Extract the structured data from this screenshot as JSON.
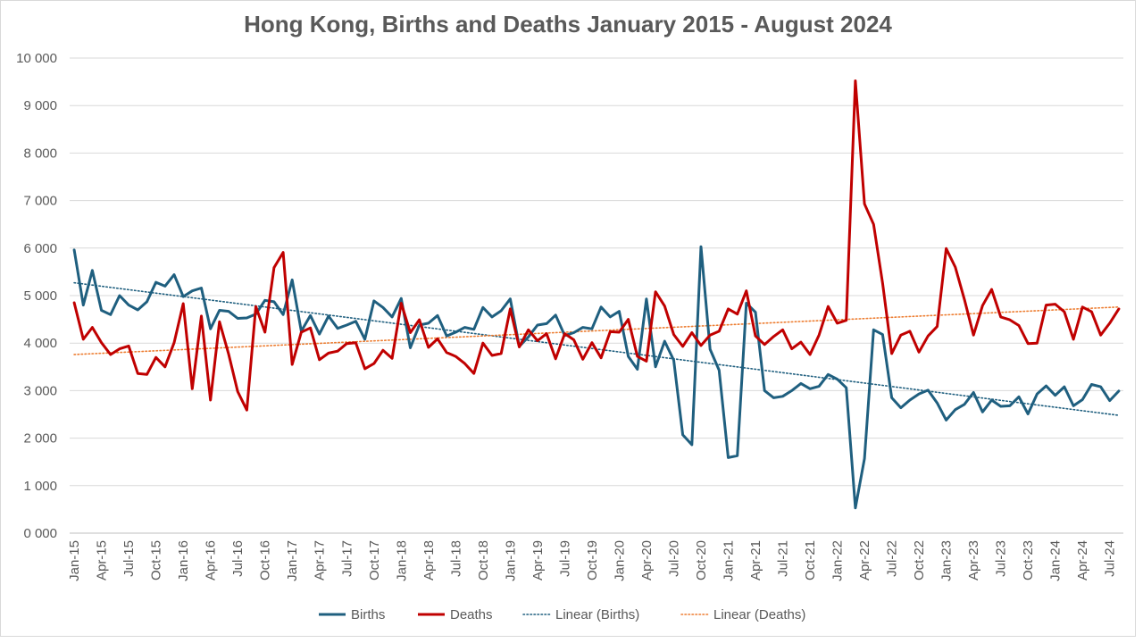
{
  "chart_data": {
    "type": "line",
    "title": "Hong Kong, Births and Deaths January 2015 - August 2024",
    "xlabel": "",
    "ylabel": "",
    "ylim": [
      0,
      10000
    ],
    "y_ticks": [
      "0 000",
      "1 000",
      "2 000",
      "3 000",
      "4 000",
      "5 000",
      "6 000",
      "7 000",
      "8 000",
      "9 000",
      "10 000"
    ],
    "grid": true,
    "legend_position": "bottom",
    "x_tick_labels": [
      "Jan-15",
      "Apr-15",
      "Jul-15",
      "Oct-15",
      "Jan-16",
      "Apr-16",
      "Jul-16",
      "Oct-16",
      "Jan-17",
      "Apr-17",
      "Jul-17",
      "Oct-17",
      "Jan-18",
      "Apr-18",
      "Jul-18",
      "Oct-18",
      "Jan-19",
      "Apr-19",
      "Jul-19",
      "Oct-19",
      "Jan-20",
      "Apr-20",
      "Jul-20",
      "Oct-20",
      "Jan-21",
      "Apr-21",
      "Jul-21",
      "Oct-21",
      "Jan-22",
      "Apr-22",
      "Jul-22",
      "Oct-22",
      "Jan-23",
      "Apr-23",
      "Jul-23",
      "Oct-23",
      "Jan-24",
      "Apr-24",
      "Jul-24"
    ],
    "series": [
      {
        "name": "Births",
        "color": "#1f5f7f",
        "values": [
          5960,
          4800,
          5530,
          4690,
          4600,
          5000,
          4800,
          4700,
          4870,
          5280,
          5200,
          5440,
          4980,
          5100,
          5160,
          4300,
          4690,
          4670,
          4520,
          4530,
          4610,
          4900,
          4870,
          4600,
          5330,
          4250,
          4580,
          4190,
          4570,
          4310,
          4380,
          4460,
          4080,
          4890,
          4750,
          4550,
          4940,
          3900,
          4380,
          4420,
          4580,
          4150,
          4230,
          4330,
          4290,
          4750,
          4550,
          4680,
          4930,
          3930,
          4130,
          4380,
          4410,
          4590,
          4160,
          4220,
          4330,
          4300,
          4760,
          4550,
          4670,
          3720,
          3450,
          4930,
          3500,
          4040,
          3640,
          2070,
          1860,
          6030,
          3870,
          3430,
          1590,
          1630,
          4840,
          4650,
          3000,
          2850,
          2880,
          3000,
          3150,
          3040,
          3090,
          3340,
          3240,
          3060,
          530,
          1570,
          4280,
          4180,
          2850,
          2640,
          2800,
          2930,
          3010,
          2740,
          2380,
          2600,
          2710,
          2960,
          2550,
          2800,
          2670,
          2680,
          2870,
          2510,
          2930,
          3100,
          2900,
          3080,
          2680,
          2810,
          3130,
          3080,
          2790,
          2990
        ]
      },
      {
        "name": "Deaths",
        "color": "#c00000",
        "values": [
          4850,
          4080,
          4330,
          4010,
          3760,
          3880,
          3940,
          3360,
          3340,
          3700,
          3500,
          4010,
          4830,
          3040,
          4570,
          2800,
          4450,
          3770,
          2980,
          2590,
          4770,
          4230,
          5590,
          5910,
          3550,
          4230,
          4320,
          3650,
          3790,
          3830,
          3990,
          4010,
          3460,
          3570,
          3850,
          3680,
          4840,
          4220,
          4490,
          3910,
          4090,
          3800,
          3720,
          3570,
          3360,
          4000,
          3740,
          3780,
          4720,
          3920,
          4280,
          4050,
          4200,
          3670,
          4200,
          4070,
          3660,
          4010,
          3690,
          4240,
          4230,
          4500,
          3720,
          3620,
          5080,
          4780,
          4180,
          3930,
          4220,
          3950,
          4170,
          4250,
          4720,
          4610,
          5100,
          4150,
          3970,
          4140,
          4280,
          3880,
          4020,
          3760,
          4170,
          4770,
          4420,
          4480,
          9520,
          6930,
          6500,
          5260,
          3780,
          4170,
          4250,
          3810,
          4150,
          4350,
          5990,
          5600,
          4920,
          4170,
          4790,
          5130,
          4550,
          4490,
          4370,
          3990,
          4000,
          4800,
          4820,
          4660,
          4080,
          4760,
          4660,
          4170,
          4420,
          4720
        ]
      },
      {
        "name": "Linear (Births)",
        "color": "#1f5f7f",
        "trend_start": 5270,
        "trend_end": 2480
      },
      {
        "name": "Linear (Deaths)",
        "color": "#ed7d31",
        "trend_start": 3760,
        "trend_end": 4760
      }
    ]
  }
}
